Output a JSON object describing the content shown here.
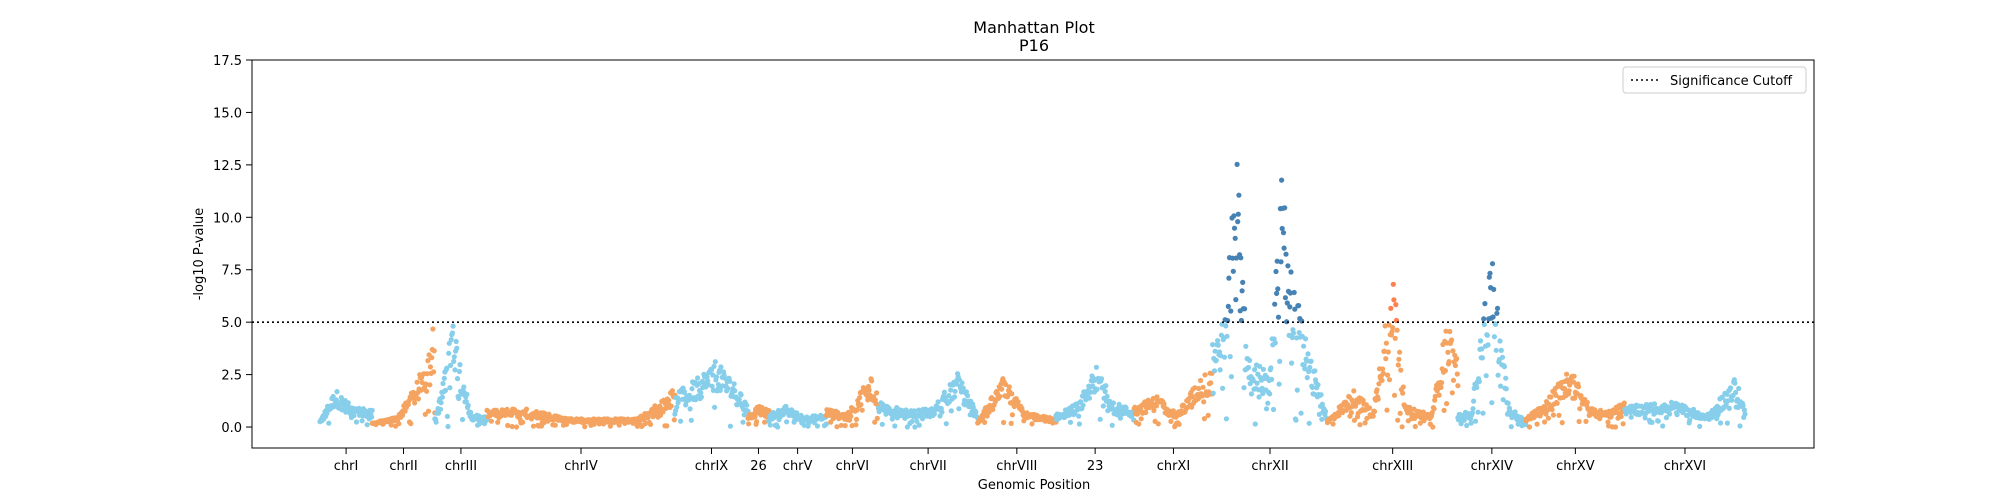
{
  "chart_data": {
    "type": "scatter",
    "title": "Manhattan Plot",
    "subtitle": "P16",
    "xlabel": "Genomic Position",
    "ylabel": "-log10 P-value",
    "ylim": [
      -1.0,
      17.5
    ],
    "yticks": [
      0.0,
      2.5,
      5.0,
      7.5,
      10.0,
      12.5,
      15.0,
      17.5
    ],
    "ytick_labels": [
      "0.0",
      "2.5",
      "5.0",
      "7.5",
      "10.0",
      "12.5",
      "15.0",
      "17.5"
    ],
    "significance_cutoff": 5.0,
    "legend": {
      "label": "Significance Cutoff",
      "placement": "top-right"
    },
    "grid": false,
    "colors": {
      "light_blue": "#87CEEB",
      "sandy_orange": "#F4A460",
      "steel_blue": "#4682B4",
      "coral": "#FF7F50",
      "cutoff_line": "#000000"
    },
    "chromosomes": [
      {
        "label": "chrI",
        "color": "light_blue",
        "sig_color": "steel_blue",
        "profile": [
          [
            0,
            0.3
          ],
          [
            0.3,
            1.8
          ],
          [
            0.6,
            1.0
          ],
          [
            1,
            0.8
          ]
        ]
      },
      {
        "label": "chrII",
        "color": "sandy_orange",
        "sig_color": "coral",
        "profile": [
          [
            0,
            0.2
          ],
          [
            0.4,
            0.5
          ],
          [
            0.7,
            2.0
          ],
          [
            0.9,
            3.8
          ],
          [
            0.97,
            5.2
          ],
          [
            1,
            3.0
          ]
        ]
      },
      {
        "label": "chrIII",
        "color": "light_blue",
        "sig_color": "steel_blue",
        "profile": [
          [
            0,
            0.4
          ],
          [
            0.15,
            2.0
          ],
          [
            0.35,
            5.4
          ],
          [
            0.5,
            3.0
          ],
          [
            0.7,
            0.6
          ],
          [
            1,
            0.5
          ]
        ]
      },
      {
        "label": "chrIV",
        "color": "sandy_orange",
        "sig_color": "coral",
        "profile": [
          [
            0,
            0.8
          ],
          [
            0.2,
            0.9
          ],
          [
            0.45,
            0.4
          ],
          [
            0.8,
            0.4
          ],
          [
            0.95,
            1.4
          ],
          [
            1,
            2.0
          ]
        ]
      },
      {
        "label": "chrIX",
        "color": "light_blue",
        "sig_color": "steel_blue",
        "profile": [
          [
            0,
            1.6
          ],
          [
            0.3,
            2.3
          ],
          [
            0.55,
            3.2
          ],
          [
            0.8,
            2.2
          ],
          [
            1,
            1.0
          ]
        ]
      },
      {
        "label": "26",
        "color": "sandy_orange",
        "sig_color": "coral",
        "profile": [
          [
            0,
            0.6
          ],
          [
            0.5,
            1.0
          ],
          [
            1,
            0.8
          ]
        ]
      },
      {
        "label": "chrV",
        "color": "light_blue",
        "sig_color": "steel_blue",
        "profile": [
          [
            0,
            0.6
          ],
          [
            0.3,
            1.0
          ],
          [
            0.6,
            0.5
          ],
          [
            1,
            0.6
          ]
        ]
      },
      {
        "label": "chrVI",
        "color": "sandy_orange",
        "sig_color": "coral",
        "profile": [
          [
            0,
            0.9
          ],
          [
            0.4,
            0.6
          ],
          [
            0.85,
            2.6
          ],
          [
            1,
            1.5
          ]
        ]
      },
      {
        "label": "chrVII",
        "color": "light_blue",
        "sig_color": "steel_blue",
        "profile": [
          [
            0,
            1.2
          ],
          [
            0.3,
            0.8
          ],
          [
            0.55,
            0.9
          ],
          [
            0.8,
            2.6
          ],
          [
            1,
            0.6
          ]
        ]
      },
      {
        "label": "chrVIII",
        "color": "sandy_orange",
        "sig_color": "coral",
        "profile": [
          [
            0,
            0.3
          ],
          [
            0.35,
            2.5
          ],
          [
            0.6,
            0.7
          ],
          [
            1,
            0.4
          ]
        ]
      },
      {
        "label": "23",
        "color": "light_blue",
        "sig_color": "steel_blue",
        "profile": [
          [
            0,
            0.6
          ],
          [
            0.3,
            1.2
          ],
          [
            0.5,
            3.0
          ],
          [
            0.75,
            1.2
          ],
          [
            1,
            0.8
          ]
        ]
      },
      {
        "label": "chrXI",
        "color": "sandy_orange",
        "sig_color": "coral",
        "profile": [
          [
            0,
            1.0
          ],
          [
            0.3,
            1.5
          ],
          [
            0.55,
            0.7
          ],
          [
            0.85,
            2.4
          ],
          [
            1,
            2.8
          ]
        ]
      },
      {
        "label": "chrXII",
        "color": "light_blue",
        "sig_color": "steel_blue",
        "profile": [
          [
            0,
            4.0
          ],
          [
            0.12,
            5.5
          ],
          [
            0.2,
            14.5
          ],
          [
            0.3,
            3.5
          ],
          [
            0.5,
            2.5
          ],
          [
            0.6,
            12.0
          ],
          [
            0.7,
            7.0
          ],
          [
            0.85,
            3.5
          ],
          [
            1,
            0.5
          ]
        ]
      },
      {
        "label": "chrXIII",
        "color": "sandy_orange",
        "sig_color": "coral",
        "profile": [
          [
            0,
            0.3
          ],
          [
            0.2,
            1.8
          ],
          [
            0.35,
            0.8
          ],
          [
            0.5,
            7.8
          ],
          [
            0.6,
            1.0
          ],
          [
            0.8,
            0.6
          ],
          [
            0.92,
            5.4
          ],
          [
            1,
            3.0
          ]
        ]
      },
      {
        "label": "chrXIV",
        "color": "light_blue",
        "sig_color": "steel_blue",
        "profile": [
          [
            0,
            0.6
          ],
          [
            0.2,
            0.8
          ],
          [
            0.5,
            8.5
          ],
          [
            0.75,
            1.0
          ],
          [
            1,
            0.3
          ]
        ]
      },
      {
        "label": "chrXV",
        "color": "sandy_orange",
        "sig_color": "coral",
        "profile": [
          [
            0,
            0.4
          ],
          [
            0.25,
            1.6
          ],
          [
            0.45,
            2.8
          ],
          [
            0.65,
            0.9
          ],
          [
            0.85,
            0.8
          ],
          [
            1,
            1.2
          ]
        ]
      },
      {
        "label": "chrXVI",
        "color": "light_blue",
        "sig_color": "steel_blue",
        "profile": [
          [
            0,
            1.0
          ],
          [
            0.4,
            1.2
          ],
          [
            0.7,
            0.6
          ],
          [
            0.92,
            2.4
          ],
          [
            1,
            0.8
          ]
        ]
      }
    ]
  }
}
